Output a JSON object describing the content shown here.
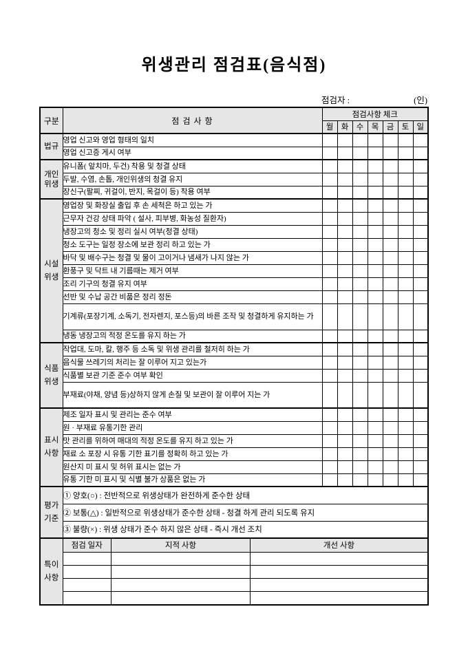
{
  "colors": {
    "page_bg": "#ffffff",
    "header_bg": "#e6e6e6",
    "border": "#000000"
  },
  "title": "위생관리 점검표(음식점)",
  "inspector": {
    "label": "점검자 :",
    "seal": "(인)"
  },
  "table": {
    "header": {
      "category": "구분",
      "items": "점 검 사 항",
      "check_title": "점검사항 체크",
      "days": [
        "월",
        "화",
        "수",
        "목",
        "금",
        "토",
        "일"
      ]
    },
    "sections": [
      {
        "label": "법규",
        "items": [
          "영업 신고와 영업 형태의 일치",
          "영업 신고증 게시 여부"
        ]
      },
      {
        "label": "개인위생",
        "items": [
          "유니폼( 앞치마, 두건) 착용 및 청결 상태",
          "두발, 수염, 손톱, 개인위생의 청결 유지",
          "장신구(팔찌, 귀걸이, 반지, 목걸이 등) 착용 여부"
        ]
      },
      {
        "label": "시설위생",
        "items": [
          "영업장 및 화장실 출입 후 손 세척은 하고 있는 가",
          "근무자 건강 상태 파악 ( 설사, 피부병, 화농성 질환자)",
          "냉장고의 청소 및 정리 실시 여부(청결 상태)",
          "청소 도구는 일정 장소에 보관 정리 하고 있는 가",
          "바닥 및 배수구는 청결 및  물이 고이거나 냄새가 나지 않는 가",
          "환풍구 및 닥트 내 기름때는 제거 여부",
          "조리 기구의 청결 유지 여부",
          "선반 및 수납 공간 비품은 정리 정돈",
          "기계류(포장기계, 소독기, 전자렌지, 포스등)의 바른 조작 및 청결하게 유지하는 가",
          "냉동 냉장고의 적정 온도를 유지 하는 가"
        ]
      },
      {
        "label": "식품위생",
        "items": [
          "작업대, 도마, 칼, 행주 등 소독 및 위생 관리를 철저히 하는 가",
          "음식물 쓰레기의 처리는 잘 이루어 지고 있는가",
          "식품별 보관 기준 준수 여부 확인",
          "부재료(야채, 양념 등)상하지 않게 손질 및 보관이 잘 이루어 지는 가"
        ]
      },
      {
        "label": "표시사항",
        "items": [
          "제조 일자 표시 및 관리는 준수 여부",
          "원 · 부재료 유통기한 관리",
          "맛 관리를 위하여 매대의 적정 온도를 유지 하고 있는 가",
          "재료 소 포장 시 유통 기한 표기를 정확히 하고 있는 가",
          "원산지 미 표시 및 허위 표시는 없는 가",
          "유통 기한 미 표시 및 식별 불가 상품은 없는 가"
        ]
      }
    ],
    "evaluation": {
      "label": "평가기준",
      "items": [
        "① 양호(○) : 전반적으로 위생상태가 완전하게 준수한 상태",
        "② 보통(△) : 일반적으로 위생상태가 준수한 상태 - 청결 하게 관리 되도록 유지",
        "③ 불량(×) : 위생 상태가 준수 하지 않은 상태 - 즉시 개선 조치"
      ]
    },
    "notes": {
      "label": "특이사항",
      "columns": [
        "점검 일자",
        "지적 사항",
        "개선 사항"
      ],
      "empty_rows": 4
    }
  }
}
